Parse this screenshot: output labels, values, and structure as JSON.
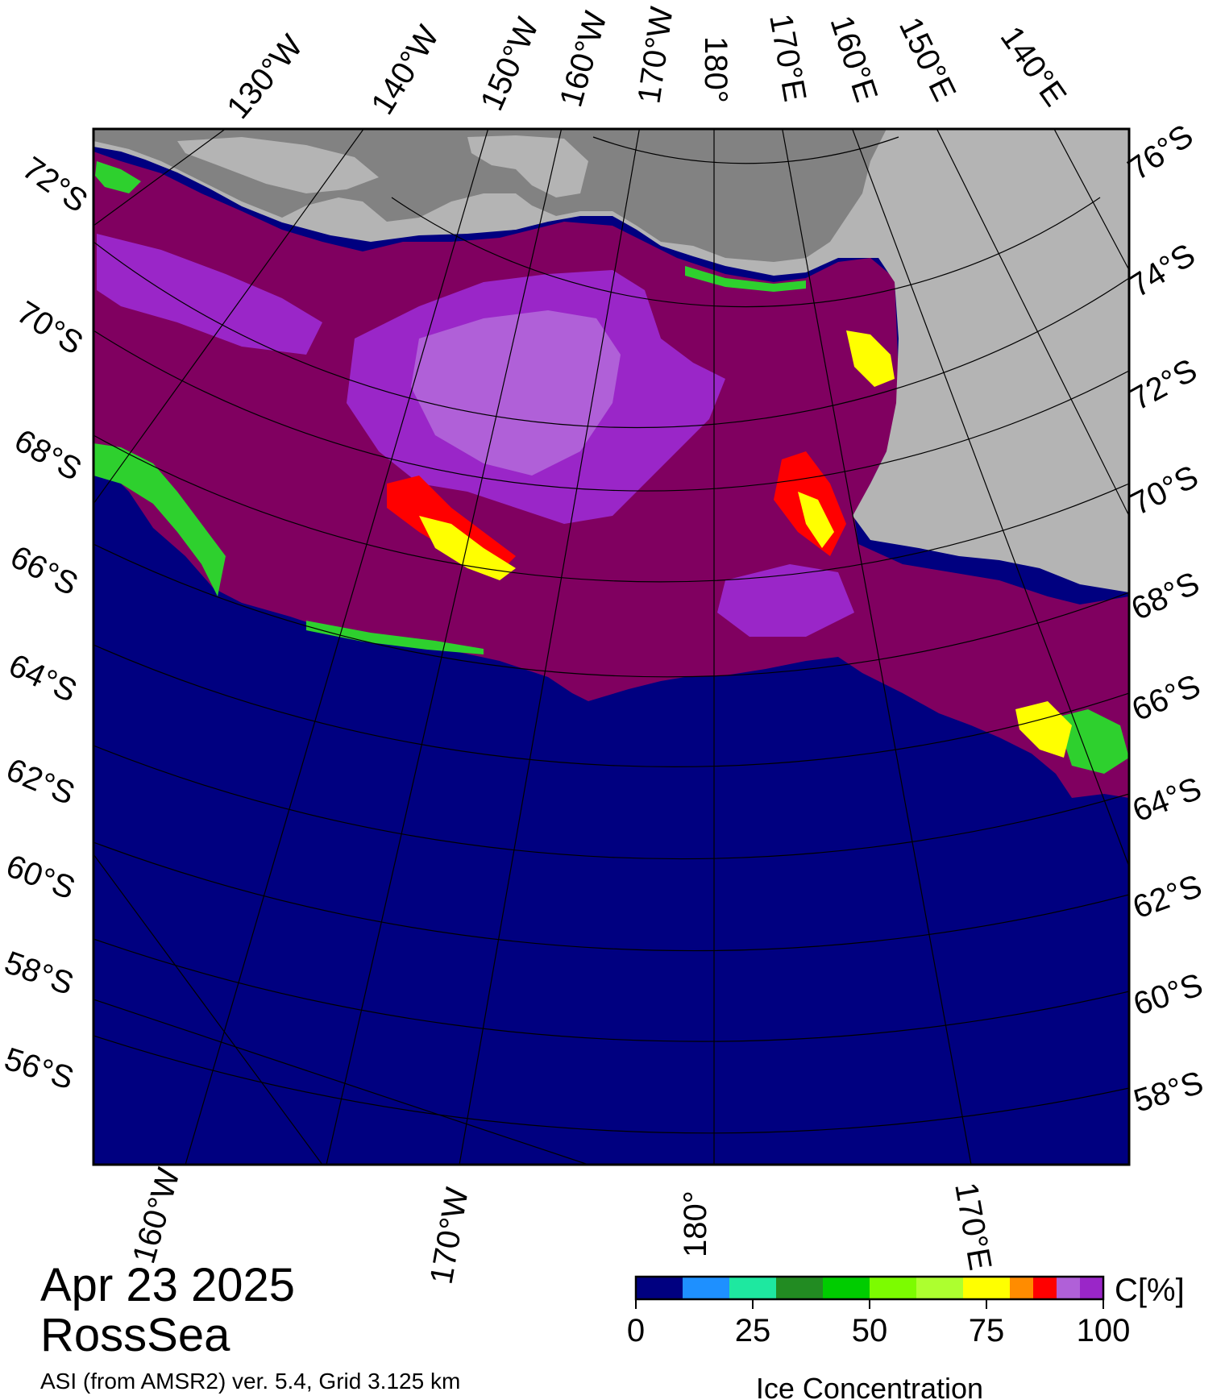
{
  "date": "Apr 23 2025",
  "region": "RossSea",
  "product": "ASI (from AMSR2) ver. 5.4,  Grid 3.125 km",
  "colors": {
    "ocean": "#000080",
    "land_light": "#b4b4b4",
    "land_dark": "#828282",
    "ice_dense": "#800060",
    "ice_high": "#9a26c8",
    "ice_mid": "#b060d8",
    "ice_red": "#ff0000",
    "ice_yellow": "#ffff00",
    "ice_green": "#2ed02e"
  },
  "top_lon_labels": [
    "130°W",
    "140°W",
    "150°W",
    "160°W",
    "170°W",
    "180°",
    "170°E",
    "160°E",
    "150°E",
    "140°E"
  ],
  "bottom_lon_labels": [
    "160°W",
    "170°W",
    "180°",
    "170°E"
  ],
  "left_lat_labels": [
    "72°S",
    "70°S",
    "68°S",
    "66°S",
    "64°S",
    "62°S",
    "60°S",
    "58°S",
    "56°S"
  ],
  "right_lat_labels": [
    "76°S",
    "74°S",
    "72°S",
    "70°S",
    "68°S",
    "66°S",
    "64°S",
    "62°S",
    "60°S",
    "58°S"
  ],
  "legend": {
    "unit": "C[%]",
    "title": "Ice Concentration",
    "ticks": [
      "0",
      "25",
      "50",
      "75",
      "100"
    ],
    "tick_values": [
      0,
      25,
      50,
      75,
      100
    ],
    "bins": [
      {
        "from": 0,
        "to": 10,
        "color": "#000080"
      },
      {
        "from": 10,
        "to": 20,
        "color": "#1e90ff"
      },
      {
        "from": 20,
        "to": 30,
        "color": "#1ee8a0"
      },
      {
        "from": 30,
        "to": 40,
        "color": "#228b22"
      },
      {
        "from": 40,
        "to": 50,
        "color": "#00cc00"
      },
      {
        "from": 50,
        "to": 60,
        "color": "#7cfc00"
      },
      {
        "from": 60,
        "to": 70,
        "color": "#adff2f"
      },
      {
        "from": 70,
        "to": 80,
        "color": "#ffff00"
      },
      {
        "from": 80,
        "to": 85,
        "color": "#ff8c00"
      },
      {
        "from": 85,
        "to": 90,
        "color": "#ff0000"
      },
      {
        "from": 90,
        "to": 95,
        "color": "#b060d8"
      },
      {
        "from": 95,
        "to": 100,
        "color": "#9a26c8"
      }
    ]
  }
}
